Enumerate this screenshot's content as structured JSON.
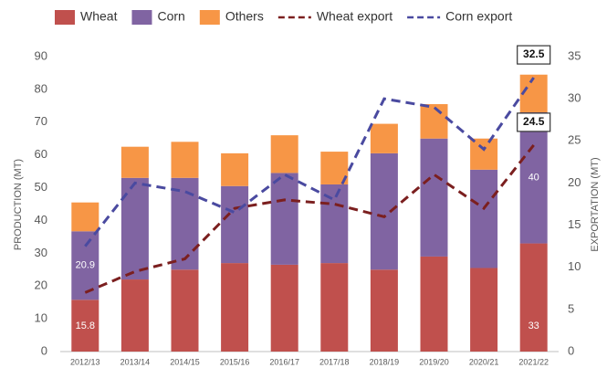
{
  "chart_data": {
    "type": "bar",
    "stacked": true,
    "categories": [
      "2012/13",
      "2013/14",
      "2014/15",
      "2015/16",
      "2016/17",
      "2017/18",
      "2018/19",
      "2019/20",
      "2020/21",
      "2021/22"
    ],
    "series": [
      {
        "name": "Wheat",
        "color": "#c0504d",
        "values": [
          15.8,
          22,
          25,
          27,
          26.5,
          27,
          25,
          29,
          25.5,
          33
        ],
        "value_labels": [
          "15.8",
          null,
          null,
          null,
          null,
          null,
          null,
          null,
          null,
          "33"
        ]
      },
      {
        "name": "Corn",
        "color": "#8064a2",
        "values": [
          20.9,
          31,
          28,
          23.5,
          28,
          24,
          35.5,
          36,
          30,
          40
        ],
        "value_labels": [
          "20.9",
          null,
          null,
          null,
          null,
          null,
          null,
          null,
          null,
          "40"
        ]
      },
      {
        "name": "Others",
        "color": "#f79646",
        "values": [
          8.8,
          9.5,
          11,
          10,
          11.5,
          10,
          9,
          10.5,
          9.5,
          11.5
        ]
      },
      {
        "name": "Wheat export",
        "color": "#7b1f1f",
        "axis": "y2",
        "style": "dashed",
        "values": [
          7,
          9.5,
          11,
          17,
          18,
          17.5,
          16,
          21,
          17,
          24.5
        ],
        "value_labels": [
          null,
          null,
          null,
          null,
          null,
          null,
          null,
          null,
          null,
          "24.5"
        ]
      },
      {
        "name": "Corn export",
        "color": "#4a4aa0",
        "axis": "y2",
        "style": "dashed",
        "values": [
          12.5,
          20,
          19,
          16.5,
          21,
          18,
          30,
          29,
          24,
          32.5
        ],
        "value_labels": [
          null,
          null,
          null,
          null,
          null,
          null,
          null,
          null,
          null,
          "32.5"
        ]
      }
    ],
    "ylabel": "PRODUCTION (MT)",
    "y2label": "EXPORTATION (MT)",
    "ylim": [
      0,
      90
    ],
    "yticks": [
      0,
      10,
      20,
      30,
      40,
      50,
      60,
      70,
      80,
      90
    ],
    "y2lim": [
      0,
      35
    ],
    "y2ticks": [
      0,
      5,
      10,
      15,
      20,
      25,
      30,
      35
    ],
    "grid": false,
    "legend": "top"
  }
}
